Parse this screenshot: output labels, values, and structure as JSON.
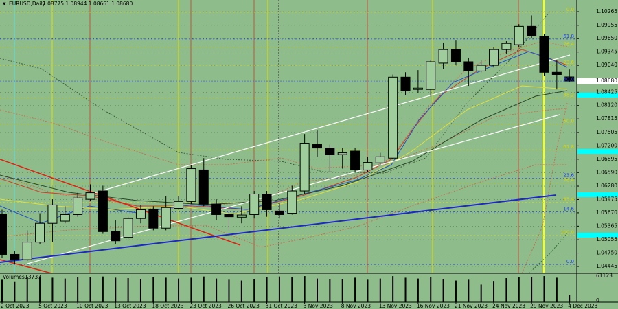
{
  "chart_data": {
    "type": "candlestick",
    "header": {
      "symbol": "EURUSD,Daily",
      "ohlc_text": "1.08775 1.08944 1.08661 1.08680"
    },
    "categories": [
      "2 Oct 2023",
      null,
      null,
      "5 Oct 2023",
      null,
      null,
      "10 Oct 2023",
      null,
      null,
      "13 Oct 2023",
      null,
      null,
      "18 Oct 2023",
      null,
      null,
      "23 Oct 2023",
      null,
      null,
      "26 Oct 2023",
      null,
      null,
      "31 Oct 2023",
      null,
      null,
      "3 Nov 2023",
      null,
      null,
      "8 Nov 2023",
      null,
      null,
      "13 Nov 2023",
      null,
      null,
      "16 Nov 2023",
      null,
      null,
      "21 Nov 2023",
      null,
      null,
      "24 Nov 2023",
      null,
      null,
      "29 Nov 2023",
      null,
      null,
      "4 Dec 2023"
    ],
    "open": [
      1.0563,
      1.0472,
      1.046,
      1.05,
      1.0543,
      1.0548,
      1.0563,
      1.0598,
      1.0617,
      1.0524,
      1.0511,
      1.0554,
      1.0574,
      1.0532,
      1.0577,
      1.0593,
      1.0665,
      1.0587,
      1.0563,
      1.0557,
      1.0563,
      1.061,
      1.0571,
      1.0566,
      1.0617,
      1.0723,
      1.0715,
      1.07,
      1.0708,
      1.0665,
      1.0681,
      1.0692,
      1.0877,
      1.0849,
      1.0849,
      1.0909,
      1.094,
      1.0912,
      1.0891,
      1.0904,
      1.094,
      1.0951,
      1.0993,
      1.097,
      1.0888,
      1.08775
    ],
    "high": [
      1.0574,
      1.048,
      1.0527,
      1.0566,
      1.0598,
      1.0582,
      1.0613,
      1.0632,
      1.0629,
      1.0551,
      1.0558,
      1.0585,
      1.0582,
      1.0606,
      1.0606,
      1.0676,
      1.0692,
      1.0598,
      1.0582,
      1.0582,
      1.0617,
      1.0617,
      1.059,
      1.0629,
      1.0747,
      1.0755,
      1.0723,
      1.0715,
      1.0715,
      1.0695,
      1.0704,
      1.0883,
      1.0888,
      1.0893,
      1.0915,
      1.0956,
      1.0962,
      1.092,
      1.0915,
      1.0946,
      1.0959,
      1.0998,
      1.1018,
      1.0975,
      1.0915,
      1.08944
    ],
    "low": [
      1.0464,
      1.0449,
      1.0457,
      1.0496,
      1.05,
      1.0543,
      1.0558,
      1.0595,
      1.0519,
      1.0496,
      1.0507,
      1.0543,
      1.0527,
      1.0527,
      1.0574,
      1.0587,
      1.0582,
      1.0551,
      1.0527,
      1.0543,
      1.0554,
      1.0558,
      1.0554,
      1.0563,
      1.061,
      1.0695,
      1.066,
      1.0668,
      1.066,
      1.066,
      1.0676,
      1.0689,
      1.0836,
      1.0841,
      1.0833,
      1.0896,
      1.0904,
      1.0857,
      1.0888,
      1.0899,
      1.0931,
      1.0946,
      1.0967,
      1.088,
      1.0849,
      1.08661
    ],
    "close": [
      1.0472,
      1.0461,
      1.05,
      1.0543,
      1.0585,
      1.0563,
      1.0601,
      1.0613,
      1.0524,
      1.0503,
      1.0554,
      1.0574,
      1.0532,
      1.0579,
      1.0593,
      1.0668,
      1.0587,
      1.0563,
      1.0558,
      1.0562,
      1.061,
      1.0574,
      1.0563,
      1.0617,
      1.0726,
      1.0715,
      1.07,
      1.0704,
      1.0665,
      1.0682,
      1.0695,
      1.0877,
      1.0846,
      1.0852,
      1.0912,
      1.094,
      1.0912,
      1.0891,
      1.0904,
      1.094,
      1.0954,
      1.0993,
      1.0971,
      1.0888,
      1.0883,
      1.0868
    ],
    "up_color": "#9fcd9b",
    "down_color": "#000000",
    "ylim": [
      1.04288,
      1.10532
    ],
    "yticks": [
      1.10265,
      1.09955,
      {
        "value": 1.0965,
        "label": "1.09650"
      },
      1.09345,
      {
        "value": 1.0904,
        "label": "1.09040"
      },
      1.08425,
      {
        "value": 1.0812,
        "label": "1.08120"
      },
      1.07815,
      1.07505,
      {
        "value": 1.072,
        "label": "1.07200"
      },
      1.06895,
      {
        "value": 1.0659,
        "label": "1.06590"
      },
      {
        "value": 1.0628,
        "label": "1.06280"
      },
      1.05975,
      {
        "value": 1.0567,
        "label": "1.05670"
      },
      1.05365,
      1.05055,
      {
        "value": 1.0475,
        "label": "1.04750"
      },
      1.04445
    ],
    "grid": true,
    "last_price": {
      "value": 1.0868,
      "label": "1.08680"
    },
    "fib_levels": [
      {
        "label": "0.0",
        "value": 1.1025,
        "color": "#d8d800"
      },
      {
        "label": "61.8",
        "value": 1.0964,
        "color": "#1e3cff"
      },
      {
        "label": "76.4",
        "value": 1.0946,
        "color": "#d8d800"
      },
      {
        "label": "23.6",
        "value": 1.0904,
        "color": "#d8d800"
      },
      {
        "label": "50.0",
        "value": 1.0866,
        "color": "#1e3cff"
      },
      {
        "label": "38.2",
        "value": 1.083,
        "color": "#d8d800"
      },
      {
        "label": "50.0",
        "value": 1.077,
        "color": "#d8d800"
      },
      {
        "label": "61.8",
        "value": 1.0711,
        "color": "#d8d800"
      },
      {
        "label": "23.6",
        "value": 1.0646,
        "color": "#1e3cff"
      },
      {
        "label": "76.4",
        "value": 1.0635,
        "color": "#d8d800"
      },
      {
        "label": "85.4",
        "value": 1.0591,
        "color": "#d8d800"
      },
      {
        "label": "14.6",
        "value": 1.0569,
        "color": "#1e3cff"
      },
      {
        "label": "100.0",
        "value": 1.0516,
        "color": "#d8d800"
      },
      {
        "label": "0.0",
        "value": 1.0449,
        "color": "#1e3cff"
      }
    ],
    "volume": {
      "name": "Volumes",
      "color": "#000000",
      "values": [
        52000,
        48000,
        58000,
        60000,
        57000,
        55000,
        59000,
        58000,
        60000,
        57000,
        56000,
        54000,
        58000,
        57000,
        55000,
        57000,
        60000,
        55000,
        52000,
        50000,
        54000,
        59000,
        60000,
        58000,
        61000,
        55000,
        53000,
        54000,
        57000,
        52000,
        55000,
        61000,
        57000,
        55000,
        58000,
        54000,
        50000,
        52000,
        40000,
        49000,
        56000,
        58000,
        59000,
        61000,
        57000,
        13737
      ],
      "ylim": [
        0,
        61123
      ],
      "yticks": [
        0,
        61123
      ]
    }
  }
}
